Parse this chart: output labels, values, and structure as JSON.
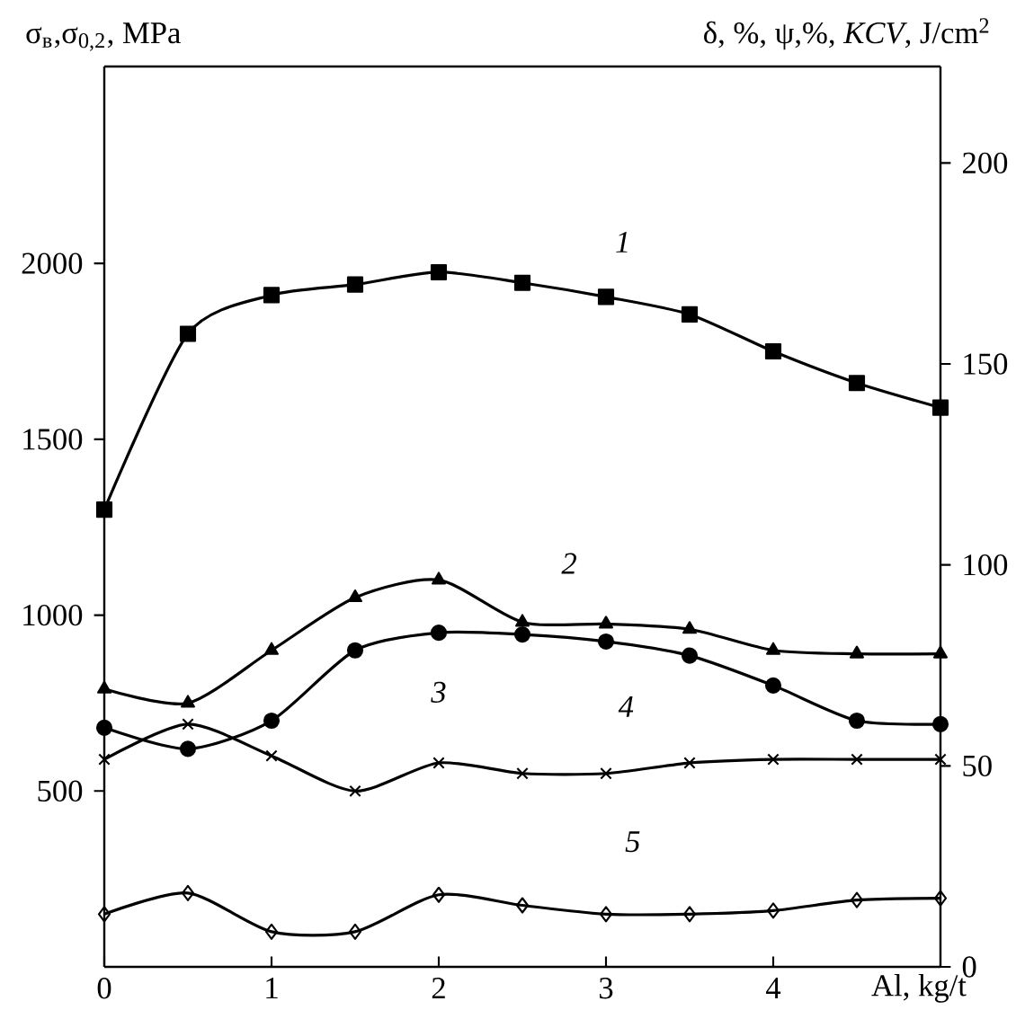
{
  "chart_data": {
    "type": "line",
    "xlabel": "Al, kg/t",
    "ylabel": "σ$_{в}$,σ$_{0,2}$, MPa",
    "y2label": "δ, %, ψ,%, *KCV*, J/cm$^{2}$",
    "x": [
      0,
      0.5,
      1,
      1.5,
      2,
      2.5,
      3,
      3.5,
      4,
      4.5,
      5
    ],
    "xlim": [
      0,
      5
    ],
    "xticks": [
      0,
      1,
      2,
      3,
      4
    ],
    "ylim": [
      0,
      2560
    ],
    "yticks": [
      500,
      1000,
      1500,
      2000
    ],
    "y2lim": [
      0,
      224
    ],
    "y2ticks": [
      0,
      50,
      100,
      150,
      200
    ],
    "series": [
      {
        "color": "#000000",
        "marker": "square",
        "values": [
          1300,
          1800,
          1910,
          1940,
          1975,
          1945,
          1905,
          1855,
          1750,
          1660,
          1590
        ]
      },
      {
        "color": "#000000",
        "marker": "triangle",
        "values": [
          790,
          750,
          900,
          1050,
          1100,
          980,
          975,
          960,
          900,
          890,
          890
        ]
      },
      {
        "color": "#000000",
        "marker": "circle",
        "values": [
          680,
          620,
          700,
          900,
          950,
          945,
          925,
          885,
          800,
          700,
          690
        ]
      },
      {
        "color": "#000000",
        "marker": "cross",
        "values": [
          590,
          690,
          600,
          500,
          580,
          550,
          550,
          580,
          590,
          590,
          590
        ]
      },
      {
        "color": "#000000",
        "marker": "diamond",
        "values": [
          150,
          210,
          100,
          100,
          205,
          175,
          150,
          150,
          160,
          190,
          195
        ]
      }
    ],
    "annotations": [
      "1",
      "2",
      "3",
      "4",
      "5"
    ],
    "line_style": "solid"
  }
}
